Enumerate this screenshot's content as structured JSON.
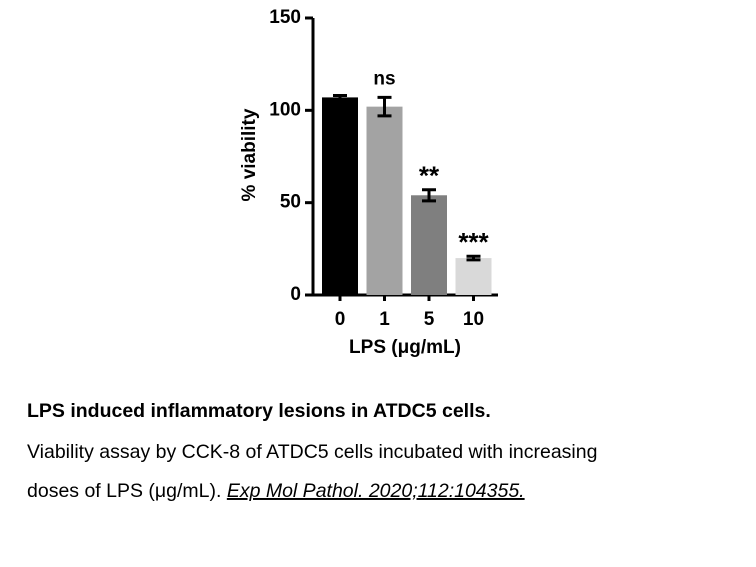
{
  "chart_data": {
    "type": "bar",
    "categories": [
      "0",
      "1",
      "5",
      "10"
    ],
    "values": [
      107,
      102,
      54,
      20
    ],
    "errors": [
      1,
      5,
      3,
      1
    ],
    "colors": [
      "#000000",
      "#a3a3a3",
      "#7f7f7f",
      "#d9d9d9"
    ],
    "annotations": [
      null,
      "ns",
      "**",
      "***"
    ],
    "xlabel": "LPS (μg/mL)",
    "ylabel": "% viability",
    "ylim": [
      0,
      150
    ],
    "yticks": [
      0,
      50,
      100,
      150
    ],
    "grid": false
  },
  "caption": {
    "title": "LPS induced inflammatory lesions in ATDC5 cells.",
    "lines": [
      "Viability assay by CCK-8 of ATDC5 cells incubated with increasing",
      "doses of LPS (μg/mL)."
    ],
    "citation": "Exp Mol Pathol. 2020;112:104355. "
  }
}
